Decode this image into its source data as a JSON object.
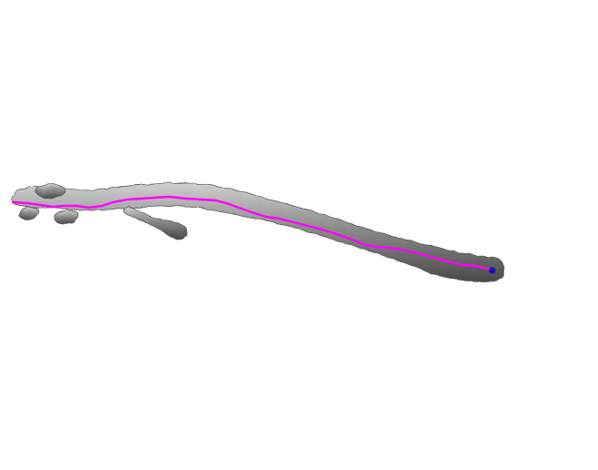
{
  "scene": {
    "background_color": "#ffffff",
    "surface_color": "#8c8c8c",
    "surface_highlight_color": "#d0d0d0",
    "surface_shadow_color": "#4a4a4a",
    "centerline_color": "#ff00ff",
    "endpoint_marker_color": "#1010c0",
    "objects": [
      {
        "kind": "tubular-surface-mesh",
        "branches": 3
      },
      {
        "kind": "centerline-path"
      },
      {
        "kind": "endpoint-marker"
      }
    ]
  }
}
